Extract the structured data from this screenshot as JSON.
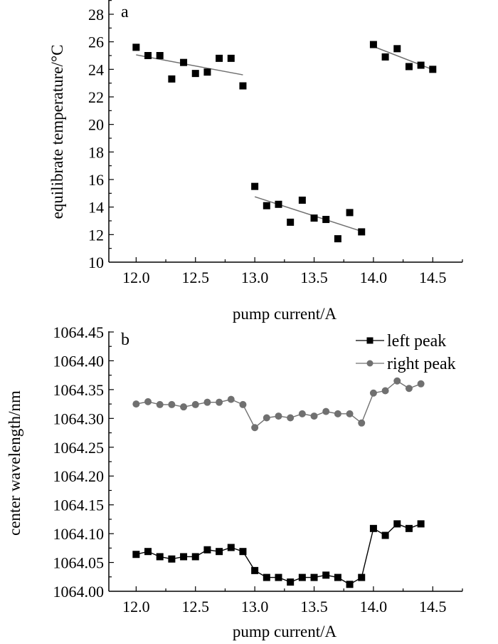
{
  "chart_data": [
    {
      "type": "scatter",
      "panel_label": "a",
      "xlabel": "pump current/A",
      "ylabel": "equilibrate temperature/°C",
      "xlim": [
        11.77,
        14.75
      ],
      "ylim": [
        10,
        29
      ],
      "xticks": [
        "12.0",
        "12.5",
        "13.0",
        "13.5",
        "14.0",
        "14.5"
      ],
      "yticks": [
        "10",
        "12",
        "14",
        "16",
        "18",
        "20",
        "22",
        "24",
        "26",
        "28"
      ],
      "grid": false,
      "marker_color": "#000000",
      "fit_color": "#707070",
      "groups": [
        {
          "x": [
            12.0,
            12.1,
            12.2,
            12.3,
            12.4,
            12.5,
            12.6,
            12.7,
            12.8,
            12.9
          ],
          "y": [
            25.6,
            25.0,
            25.0,
            23.3,
            24.5,
            23.7,
            23.8,
            24.8,
            24.8,
            22.8
          ],
          "fit": [
            [
              12.0,
              25.05
            ],
            [
              12.9,
              23.6
            ]
          ]
        },
        {
          "x": [
            13.0,
            13.1,
            13.2,
            13.3,
            13.4,
            13.5,
            13.6,
            13.7,
            13.8,
            13.9
          ],
          "y": [
            15.5,
            14.1,
            14.2,
            12.9,
            14.5,
            13.2,
            13.1,
            11.7,
            13.6,
            12.2
          ],
          "fit": [
            [
              13.0,
              14.75
            ],
            [
              13.9,
              12.24
            ]
          ]
        },
        {
          "x": [
            14.0,
            14.1,
            14.2,
            14.3,
            14.4,
            14.5
          ],
          "y": [
            25.8,
            24.9,
            25.5,
            24.2,
            24.3,
            24.0
          ],
          "fit": [
            [
              14.0,
              25.66
            ],
            [
              14.5,
              23.98
            ]
          ]
        }
      ]
    },
    {
      "type": "line",
      "panel_label": "b",
      "xlabel": "pump current/A",
      "ylabel": "center wavelength/nm",
      "xlim": [
        11.77,
        14.75
      ],
      "ylim": [
        1064.0,
        1064.45
      ],
      "xticks": [
        "12.0",
        "12.5",
        "13.0",
        "13.5",
        "14.0",
        "14.5"
      ],
      "yticks": [
        "1064.00",
        "1064.05",
        "1064.10",
        "1064.15",
        "1064.20",
        "1064.25",
        "1064.30",
        "1064.35",
        "1064.40",
        "1064.45"
      ],
      "grid": false,
      "legend_position": "top-right",
      "x": [
        12.0,
        12.1,
        12.2,
        12.3,
        12.4,
        12.5,
        12.6,
        12.7,
        12.8,
        12.9,
        13.0,
        13.1,
        13.2,
        13.3,
        13.4,
        13.5,
        13.6,
        13.7,
        13.8,
        13.9,
        14.0,
        14.1,
        14.2,
        14.3,
        14.4
      ],
      "series": [
        {
          "name": "left peak",
          "marker": "square",
          "color": "#000000",
          "values": [
            1064.064,
            1064.069,
            1064.06,
            1064.056,
            1064.06,
            1064.06,
            1064.072,
            1064.069,
            1064.076,
            1064.069,
            1064.036,
            1064.024,
            1064.024,
            1064.016,
            1064.024,
            1064.024,
            1064.028,
            1064.024,
            1064.012,
            1064.024,
            1064.109,
            1064.097,
            1064.117,
            1064.109,
            1064.117
          ]
        },
        {
          "name": "right peak",
          "marker": "circle",
          "color": "#707070",
          "values": [
            1064.325,
            1064.329,
            1064.324,
            1064.324,
            1064.32,
            1064.324,
            1064.328,
            1064.328,
            1064.333,
            1064.324,
            1064.284,
            1064.301,
            1064.304,
            1064.301,
            1064.308,
            1064.304,
            1064.312,
            1064.308,
            1064.308,
            1064.292,
            1064.344,
            1064.348,
            1064.365,
            1064.352,
            1064.36
          ]
        }
      ]
    }
  ]
}
